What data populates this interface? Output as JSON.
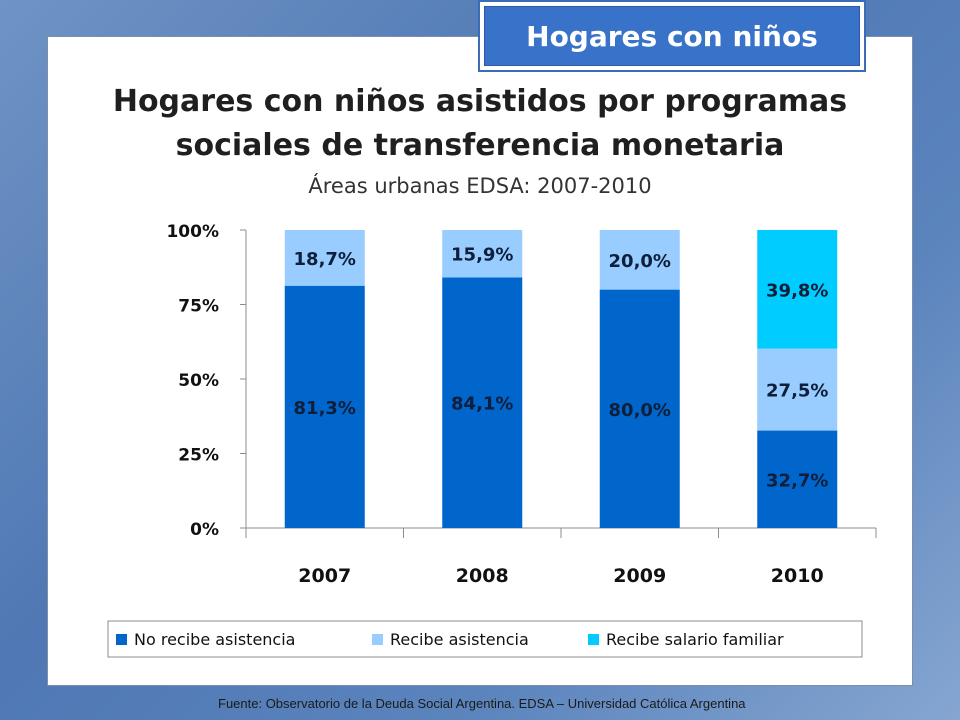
{
  "tag": {
    "label": "Hogares con niños"
  },
  "title": "Hogares con niños asistidos por programas sociales de transferencia monetaria",
  "subtitle": "Áreas urbanas EDSA: 2007-2010",
  "source": "Fuente: Observatorio de la Deuda Social Argentina. EDSA – Universidad Católica Argentina",
  "chart_data": {
    "type": "bar",
    "stacked": true,
    "categories": [
      "2007",
      "2008",
      "2009",
      "2010"
    ],
    "series": [
      {
        "name": "No recibe asistencia",
        "color": "#0066cc",
        "values": [
          81.3,
          84.1,
          80.0,
          32.7
        ],
        "labels": [
          "81,3%",
          "84,1%",
          "80,0%",
          "32,7%"
        ]
      },
      {
        "name": "Recibe asistencia",
        "color": "#99ccff",
        "values": [
          18.7,
          15.9,
          20.0,
          27.5
        ],
        "labels": [
          "18,7%",
          "15,9%",
          "20,0%",
          "27,5%"
        ]
      },
      {
        "name": "Recibe salario familiar",
        "color": "#00ccff",
        "values": [
          0,
          0,
          0,
          39.8
        ],
        "labels": [
          "",
          "",
          "",
          "39,8%"
        ]
      }
    ],
    "yticks": [
      {
        "value": 0,
        "label": "0%"
      },
      {
        "value": 25,
        "label": "25%"
      },
      {
        "value": 50,
        "label": "50%"
      },
      {
        "value": 75,
        "label": "75%"
      },
      {
        "value": 100,
        "label": "100%"
      }
    ],
    "ylim": [
      0,
      100
    ],
    "legend_position": "bottom",
    "grid": false
  }
}
